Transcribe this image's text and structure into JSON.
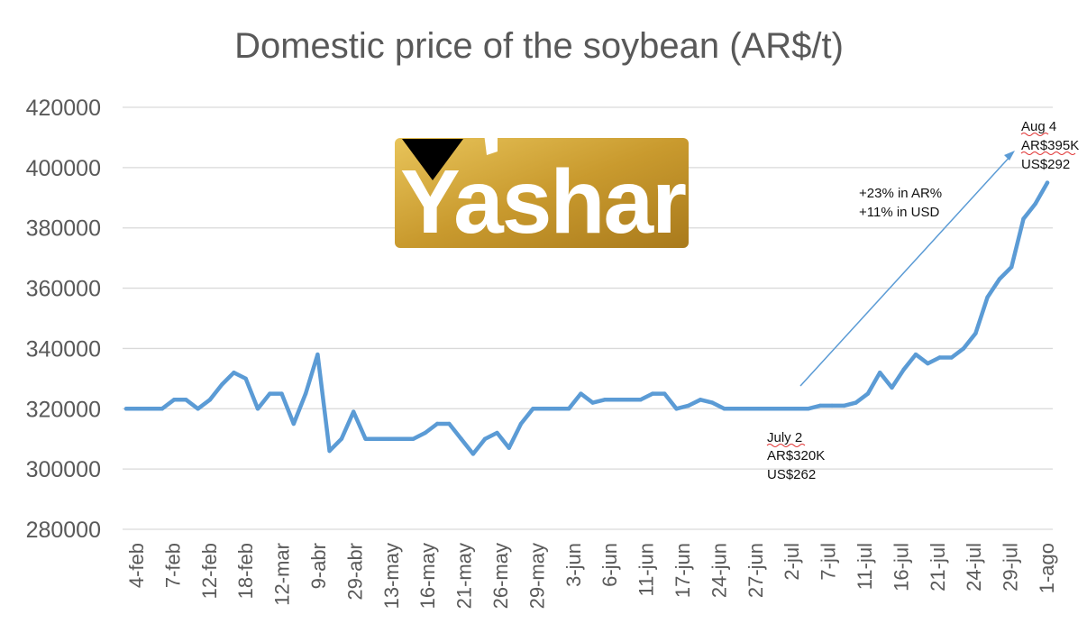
{
  "chart_data": {
    "type": "line",
    "title": "Domestic price of the soybean (AR$/t)",
    "xlabel": "",
    "ylabel": "",
    "ylim": [
      280000,
      420000
    ],
    "yticks": [
      "420000",
      "400000",
      "380000",
      "360000",
      "340000",
      "320000",
      "300000",
      "280000"
    ],
    "grid": true,
    "x_tick_labels": [
      "4-feb",
      "7-feb",
      "12-feb",
      "18-feb",
      "12-mar",
      "9-abr",
      "29-abr",
      "13-may",
      "16-may",
      "21-may",
      "26-may",
      "29-may",
      "3-jun",
      "6-jun",
      "11-jun",
      "17-jun",
      "24-jun",
      "27-jun",
      "2-jul",
      "7-jul",
      "11-jul",
      "16-jul",
      "21-jul",
      "24-jul",
      "29-jul",
      "1-ago"
    ],
    "series": [
      {
        "name": "",
        "color": "#5b9bd5",
        "values": [
          320000,
          320000,
          320000,
          320000,
          323000,
          323000,
          320000,
          323000,
          328000,
          332000,
          330000,
          320000,
          325000,
          325000,
          315000,
          325000,
          338000,
          306000,
          310000,
          319000,
          310000,
          310000,
          310000,
          310000,
          310000,
          312000,
          315000,
          315000,
          310000,
          305000,
          310000,
          312000,
          307000,
          315000,
          320000,
          320000,
          320000,
          320000,
          325000,
          322000,
          323000,
          323000,
          323000,
          323000,
          325000,
          325000,
          320000,
          321000,
          323000,
          322000,
          320000,
          320000,
          320000,
          320000,
          320000,
          320000,
          320000,
          320000,
          321000,
          321000,
          321000,
          322000,
          325000,
          332000,
          327000,
          333000,
          338000,
          335000,
          337000,
          337000,
          340000,
          345000,
          357000,
          363000,
          367000,
          383000,
          388000,
          395000
        ]
      }
    ],
    "annotations": {
      "start": {
        "lines": [
          "July 2",
          "AR$320K",
          "US$262"
        ]
      },
      "end": {
        "lines": [
          "Aug 4",
          "AR$395K",
          "US$292"
        ]
      },
      "change": {
        "lines": [
          "+23% in AR%",
          "+11% in USD"
        ]
      }
    }
  },
  "logo": {
    "text": "Yashar",
    "gold": "#c99a2e",
    "gold_light": "#e8c45a"
  }
}
